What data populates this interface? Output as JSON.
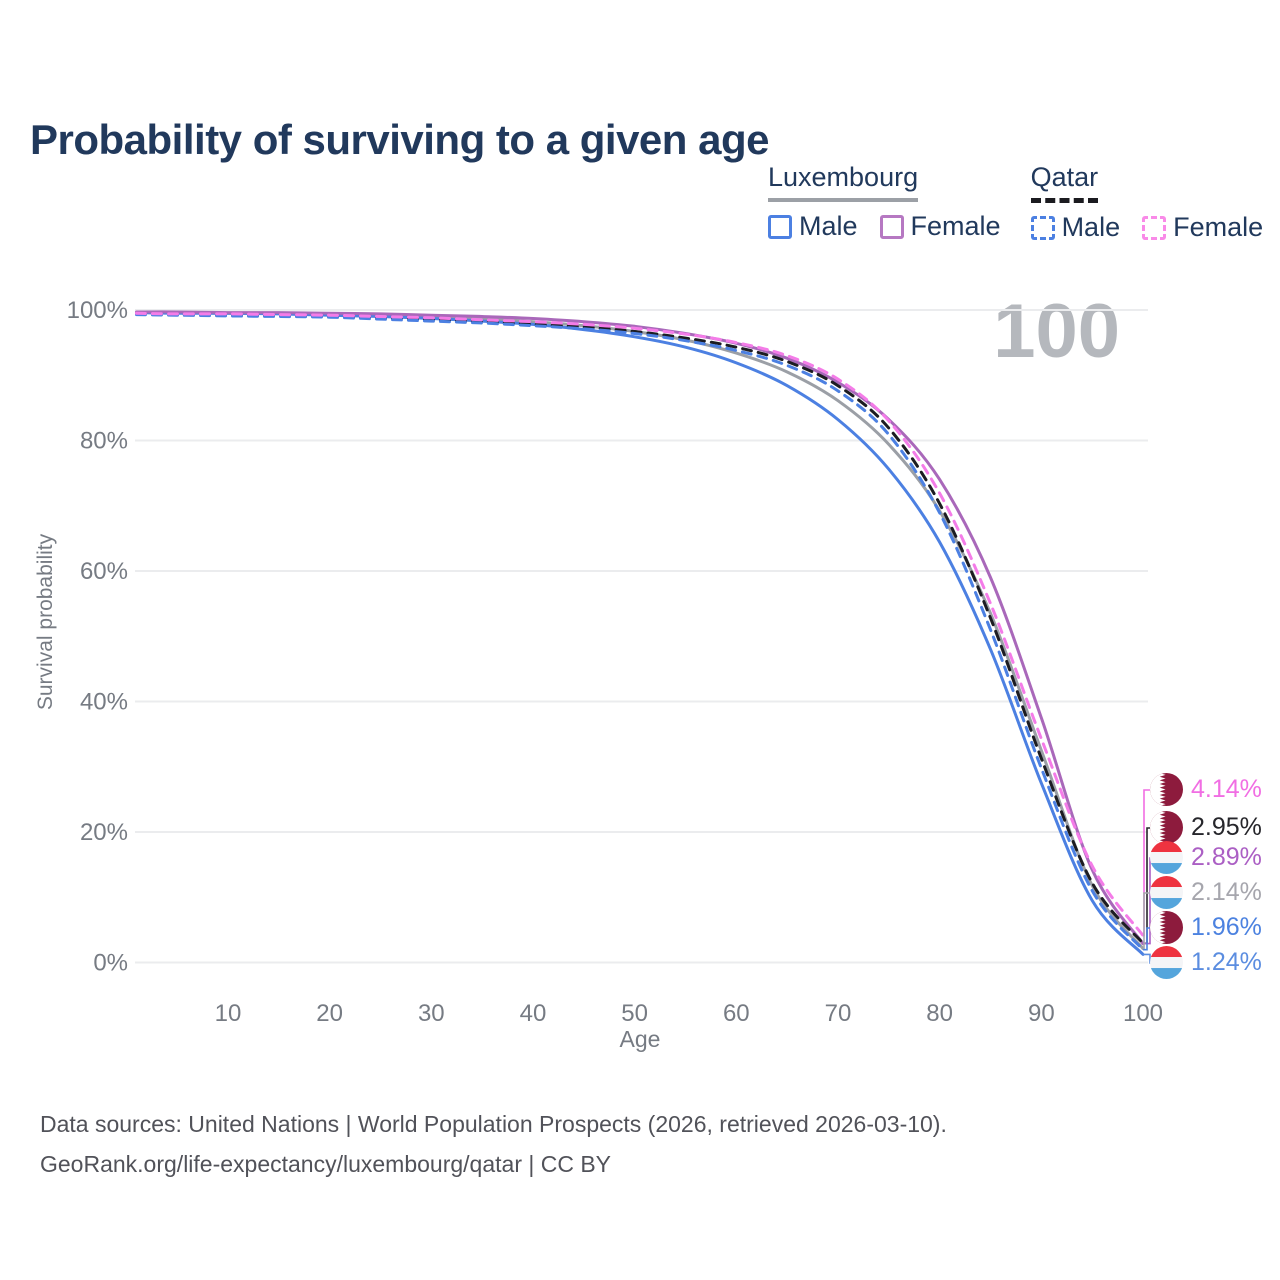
{
  "page": {
    "title": "Probability of surviving to a given age"
  },
  "legend": {
    "groups": [
      {
        "label": "Luxembourg",
        "line_style": "solid",
        "underline_color": "#9ca0a6",
        "items": [
          {
            "label": "Male",
            "color": "#4c80e2"
          },
          {
            "label": "Female",
            "color": "#b678c2"
          }
        ]
      },
      {
        "label": "Qatar",
        "line_style": "dashed",
        "underline_color": "#1b1b20",
        "items": [
          {
            "label": "Male",
            "color": "#4c80e2"
          },
          {
            "label": "Female",
            "color": "#f98ae8"
          }
        ]
      }
    ]
  },
  "watermark_age": "100",
  "chart_data": {
    "type": "line",
    "title": "Probability of surviving to a given age",
    "xlabel": "Age",
    "ylabel": "Survival probability",
    "xlim": [
      1,
      100
    ],
    "ylim": [
      0,
      100
    ],
    "grid": "horizontal",
    "legend_position": "top-right",
    "x_ticks": [
      10,
      20,
      30,
      40,
      50,
      60,
      70,
      80,
      90,
      100
    ],
    "y_ticks": [
      {
        "value": 0,
        "label": "0%"
      },
      {
        "value": 20,
        "label": "20%"
      },
      {
        "value": 40,
        "label": "40%"
      },
      {
        "value": 60,
        "label": "60%"
      },
      {
        "value": 80,
        "label": "80%"
      },
      {
        "value": 100,
        "label": "100%"
      }
    ],
    "ages": [
      1,
      5,
      10,
      15,
      20,
      25,
      30,
      35,
      40,
      45,
      50,
      55,
      60,
      65,
      70,
      75,
      80,
      85,
      90,
      95,
      100
    ],
    "series": [
      {
        "id": "luxembourg-total",
        "country": "Luxembourg",
        "sex": "total",
        "color": "#9b9fa6",
        "dashed": false,
        "flag": "luxembourg",
        "values": [
          99.6,
          99.6,
          99.5,
          99.5,
          99.3,
          99.2,
          99.0,
          98.7,
          98.2,
          97.6,
          96.7,
          95.4,
          93.4,
          90.5,
          86.1,
          79.4,
          69.2,
          53.5,
          32.5,
          11.8,
          2.14
        ],
        "end_label": {
          "text": "2.14%",
          "color": "#a6a6ad"
        }
      },
      {
        "id": "luxembourg-male",
        "country": "Luxembourg",
        "sex": "Male",
        "color": "#4c80e2",
        "dashed": false,
        "flag": "luxembourg",
        "values": [
          99.6,
          99.5,
          99.5,
          99.4,
          99.2,
          99.0,
          98.7,
          98.3,
          97.8,
          97.0,
          95.9,
          94.3,
          91.9,
          88.4,
          83.2,
          75.6,
          64.4,
          48.0,
          27.5,
          9.5,
          1.24
        ],
        "end_label": {
          "text": "1.24%",
          "color": "#5b8de0"
        }
      },
      {
        "id": "luxembourg-female",
        "country": "Luxembourg",
        "sex": "Female",
        "color": "#a968ba",
        "dashed": false,
        "flag": "luxembourg",
        "values": [
          99.7,
          99.7,
          99.6,
          99.6,
          99.5,
          99.4,
          99.2,
          99.0,
          98.7,
          98.2,
          97.5,
          96.4,
          94.9,
          92.6,
          88.9,
          83.2,
          74.0,
          59.0,
          37.5,
          14.2,
          2.89
        ],
        "end_label": {
          "text": "2.89%",
          "color": "#ab5fc4"
        }
      },
      {
        "id": "qatar-total",
        "country": "Qatar",
        "sex": "total",
        "color": "#1c1c22",
        "dashed": true,
        "flag": "qatar",
        "values": [
          99.4,
          99.3,
          99.2,
          99.1,
          99.0,
          98.8,
          98.5,
          98.2,
          97.8,
          97.4,
          96.7,
          95.7,
          94.3,
          92.1,
          88.4,
          81.9,
          70.3,
          52.8,
          31.3,
          12.2,
          2.95
        ],
        "end_label": {
          "text": "2.95%",
          "color": "#26262b"
        }
      },
      {
        "id": "qatar-male",
        "country": "Qatar",
        "sex": "Male",
        "color": "#4c80e2",
        "dashed": true,
        "flag": "qatar",
        "values": [
          99.3,
          99.2,
          99.1,
          99.0,
          98.9,
          98.6,
          98.3,
          98.0,
          97.6,
          97.1,
          96.4,
          95.3,
          93.8,
          91.5,
          87.6,
          80.9,
          68.9,
          51.0,
          29.8,
          11.0,
          1.96
        ],
        "end_label": {
          "text": "1.96%",
          "color": "#4c82e0"
        }
      },
      {
        "id": "qatar-female",
        "country": "Qatar",
        "sex": "Female",
        "color": "#f47ce8",
        "dashed": true,
        "flag": "qatar",
        "values": [
          99.5,
          99.4,
          99.4,
          99.3,
          99.2,
          99.0,
          98.8,
          98.5,
          98.2,
          97.8,
          97.2,
          96.3,
          95.0,
          93.0,
          89.4,
          83.0,
          71.9,
          55.0,
          34.3,
          14.8,
          4.14
        ],
        "end_label": {
          "text": "4.14%",
          "color": "#f16ee3"
        }
      }
    ]
  },
  "footer": {
    "line1": "Data sources: United Nations | World Population Prospects (2026, retrieved 2026-03-10).",
    "line2": "GeoRank.org/life-expectancy/luxembourg/qatar | CC BY"
  }
}
